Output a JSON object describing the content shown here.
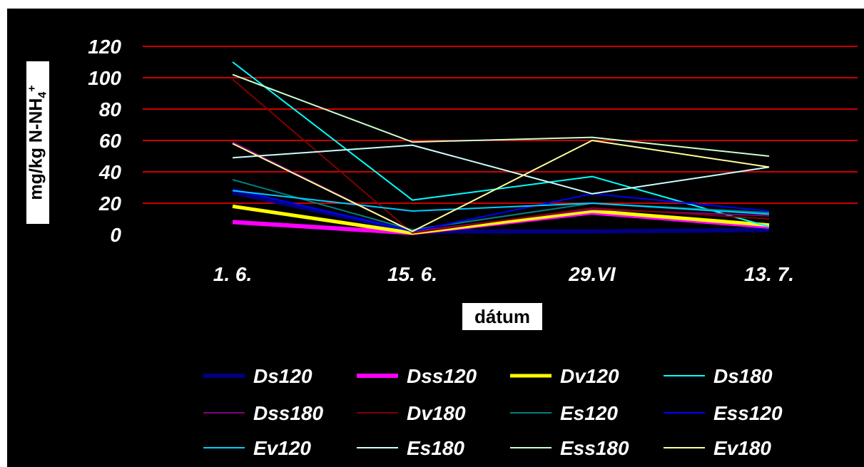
{
  "chart_data": {
    "type": "line",
    "categories": [
      "1. 6.",
      "15. 6.",
      "29.VI",
      "13. 7."
    ],
    "ylabel_parts": {
      "prefix": "mg/kg N-NH",
      "sub": "4",
      "sup": "+"
    },
    "xlabel": "dátum",
    "ylim": [
      0,
      120
    ],
    "yticks": [
      0,
      20,
      40,
      60,
      80,
      100,
      120
    ],
    "grid": true,
    "grid_color": "#cc0000",
    "background": "#000000",
    "legend_position": "bottom",
    "series": [
      {
        "name": "Ds120",
        "color": "#000080",
        "width": 6,
        "values": [
          27,
          2,
          2,
          3
        ]
      },
      {
        "name": "Dss120",
        "color": "#ff00ff",
        "width": 6,
        "values": [
          8,
          1,
          14,
          5
        ]
      },
      {
        "name": "Dv120",
        "color": "#ffff00",
        "width": 5,
        "values": [
          18,
          1,
          15,
          6
        ]
      },
      {
        "name": "Ds180",
        "color": "#00ffff",
        "width": 2,
        "values": [
          110,
          22,
          37,
          5
        ]
      },
      {
        "name": "Dss180",
        "color": "#800080",
        "width": 2,
        "values": [
          59,
          2,
          16,
          12
        ]
      },
      {
        "name": "Dv180",
        "color": "#800000",
        "width": 2,
        "values": [
          99,
          1,
          17,
          10
        ]
      },
      {
        "name": "Es120",
        "color": "#008080",
        "width": 2,
        "values": [
          35,
          3,
          20,
          14
        ]
      },
      {
        "name": "Ess120",
        "color": "#0000ff",
        "width": 2,
        "values": [
          29,
          2,
          26,
          15
        ]
      },
      {
        "name": "Ev120",
        "color": "#00ccff",
        "width": 2,
        "values": [
          28,
          15,
          20,
          13
        ]
      },
      {
        "name": "Es180",
        "color": "#ccffff",
        "width": 2,
        "values": [
          49,
          57,
          26,
          43
        ]
      },
      {
        "name": "Ess180",
        "color": "#ccffcc",
        "width": 2,
        "values": [
          102,
          59,
          62,
          50
        ]
      },
      {
        "name": "Ev180",
        "color": "#ffff99",
        "width": 2,
        "values": [
          58,
          2,
          60,
          43
        ]
      }
    ]
  }
}
